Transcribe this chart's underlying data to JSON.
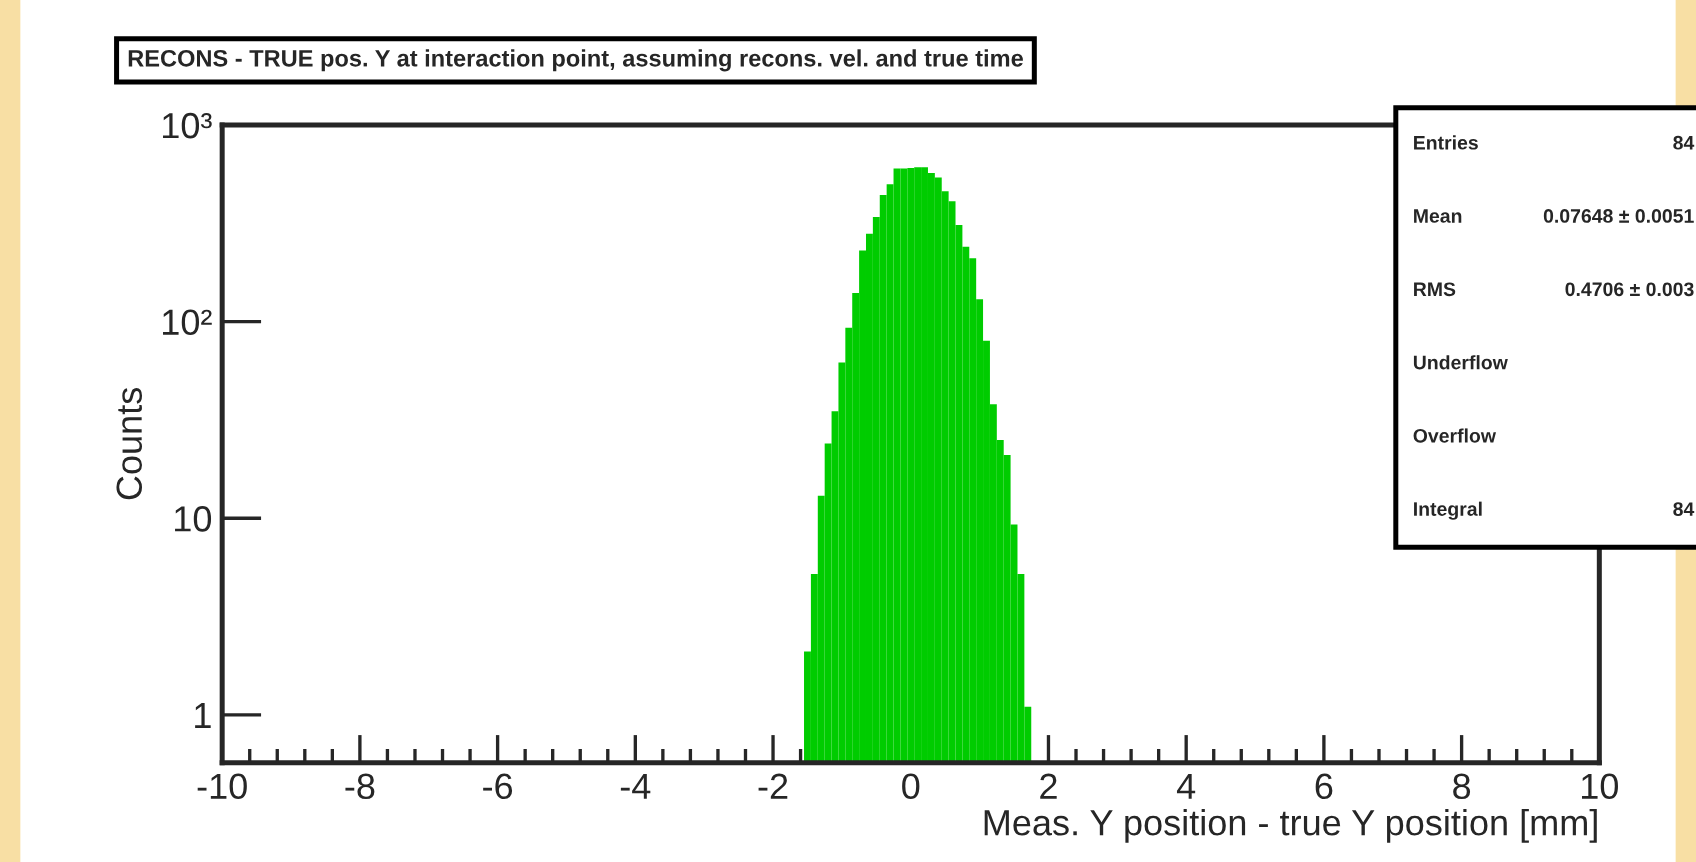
{
  "chart_data": {
    "type": "histogram",
    "title": "RECONS - TRUE pos. Y at interaction point, assuming recons. vel. and true time",
    "xlabel": "Meas. Y position - true Y position [mm]",
    "ylabel": "Counts",
    "bins": [
      -1.55,
      -1.45,
      -1.35,
      -1.25,
      -1.15,
      -1.05,
      -0.95,
      -0.85,
      -0.75,
      -0.65,
      -0.55,
      -0.45,
      -0.35,
      -0.25,
      -0.15,
      -0.05,
      0.05,
      0.15,
      0.25,
      0.35,
      0.45,
      0.55,
      0.65,
      0.75,
      0.85,
      0.95,
      1.05,
      1.15,
      1.25,
      1.35,
      1.45,
      1.55,
      1.65,
      1.75
    ],
    "values": [
      2.1,
      5.2,
      13,
      24,
      35,
      62,
      93,
      140,
      230,
      280,
      340,
      440,
      500,
      600,
      600,
      605,
      610,
      610,
      570,
      540,
      460,
      410,
      310,
      240,
      210,
      130,
      80,
      38,
      25,
      21,
      9.3,
      5.2,
      1.1
    ],
    "color": "#00cc00",
    "log": true,
    "xlim": [
      -10,
      10
    ],
    "xticks": [
      -10,
      -8,
      -6,
      -4,
      -2,
      0,
      2,
      4,
      6,
      8,
      10
    ],
    "ylim": [
      0.57,
      1000
    ],
    "yticks": [
      1,
      10,
      {
        "value": 100,
        "label": "10²"
      },
      {
        "value": 1000,
        "label": "10³"
      }
    ],
    "grid": false,
    "legend": false,
    "annotations": [
      "Entries",
      "84",
      "Mean",
      "0.07648 ± 0.0051",
      "RMS",
      "0.4706 ± 0.003",
      "Underflow",
      "Overflow",
      "Integral",
      "84"
    ]
  }
}
